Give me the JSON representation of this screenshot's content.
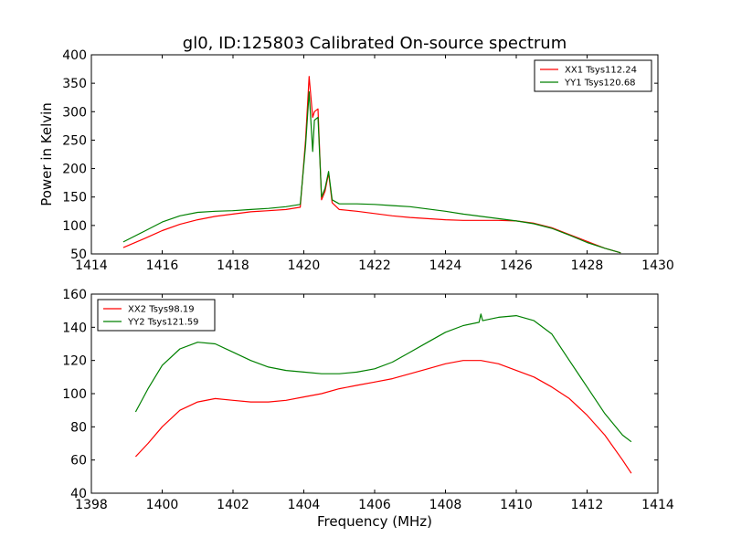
{
  "chart_data": [
    {
      "type": "line",
      "title": "gl0, ID:125803 Calibrated On-source spectrum",
      "xlabel": "",
      "ylabel": "Power in Kelvin",
      "xlim": [
        1414,
        1430
      ],
      "ylim": [
        50,
        400
      ],
      "xticks": [
        "1414",
        "1416",
        "1418",
        "1420",
        "1422",
        "1424",
        "1426",
        "1428",
        "1430"
      ],
      "yticks": [
        "50",
        "100",
        "150",
        "200",
        "250",
        "300",
        "350",
        "400"
      ],
      "legend": "top-right",
      "grid": false,
      "series": [
        {
          "name": "XX1 Tsys112.24",
          "color": "#ff0000",
          "x": [
            1414.9,
            1415.5,
            1416.0,
            1416.5,
            1417.0,
            1417.5,
            1418.0,
            1418.5,
            1419.0,
            1419.5,
            1419.9,
            1420.05,
            1420.15,
            1420.25,
            1420.3,
            1420.4,
            1420.5,
            1420.6,
            1420.7,
            1420.8,
            1421.0,
            1421.5,
            1422.0,
            1422.5,
            1423.0,
            1423.5,
            1424.0,
            1424.5,
            1425.0,
            1425.5,
            1426.0,
            1426.5,
            1427.0,
            1427.5,
            1428.0,
            1428.5,
            1428.95
          ],
          "values": [
            61,
            77,
            91,
            102,
            110,
            116,
            120,
            124,
            126,
            128,
            132,
            250,
            362,
            290,
            300,
            305,
            145,
            160,
            192,
            140,
            128,
            125,
            121,
            117,
            114,
            112,
            110,
            109,
            109,
            109,
            108,
            104,
            96,
            84,
            72,
            60,
            52
          ]
        },
        {
          "name": "YY1 Tsys120.68",
          "color": "#008000",
          "x": [
            1414.9,
            1415.5,
            1416.0,
            1416.5,
            1417.0,
            1417.5,
            1418.0,
            1418.5,
            1419.0,
            1419.5,
            1419.9,
            1420.05,
            1420.15,
            1420.25,
            1420.3,
            1420.4,
            1420.5,
            1420.6,
            1420.7,
            1420.8,
            1421.0,
            1421.5,
            1422.0,
            1422.5,
            1423.0,
            1423.5,
            1424.0,
            1424.5,
            1425.0,
            1425.5,
            1426.0,
            1426.5,
            1427.0,
            1427.5,
            1428.0,
            1428.5,
            1428.95
          ],
          "values": [
            71,
            90,
            106,
            117,
            123,
            125,
            126,
            128,
            130,
            133,
            137,
            240,
            335,
            230,
            285,
            290,
            150,
            165,
            195,
            145,
            138,
            138,
            137,
            135,
            133,
            129,
            125,
            120,
            116,
            112,
            108,
            103,
            95,
            83,
            70,
            60,
            52
          ]
        }
      ]
    },
    {
      "type": "line",
      "title": "",
      "xlabel": "Frequency (MHz)",
      "ylabel": "",
      "xlim": [
        1398,
        1414
      ],
      "ylim": [
        40,
        160
      ],
      "xticks": [
        "1398",
        "1400",
        "1402",
        "1404",
        "1406",
        "1408",
        "1410",
        "1412",
        "1414"
      ],
      "yticks": [
        "40",
        "60",
        "80",
        "100",
        "120",
        "140",
        "160"
      ],
      "legend": "top-left",
      "grid": false,
      "series": [
        {
          "name": "XX2 Tsys98.19",
          "color": "#ff0000",
          "x": [
            1399.25,
            1399.6,
            1400.0,
            1400.5,
            1401.0,
            1401.5,
            1402.0,
            1402.5,
            1403.0,
            1403.5,
            1404.0,
            1404.5,
            1405.0,
            1405.5,
            1406.0,
            1406.5,
            1407.0,
            1407.5,
            1408.0,
            1408.5,
            1409.0,
            1409.5,
            1410.0,
            1410.5,
            1411.0,
            1411.5,
            1412.0,
            1412.5,
            1413.0,
            1413.25
          ],
          "values": [
            62,
            70,
            80,
            90,
            95,
            97,
            96,
            95,
            95,
            96,
            98,
            100,
            103,
            105,
            107,
            109,
            112,
            115,
            118,
            120,
            120,
            118,
            114,
            110,
            104,
            97,
            87,
            75,
            60,
            52
          ]
        },
        {
          "name": "YY2 Tsys121.59",
          "color": "#008000",
          "x": [
            1399.25,
            1399.6,
            1400.0,
            1400.5,
            1401.0,
            1401.5,
            1402.0,
            1402.5,
            1403.0,
            1403.5,
            1404.0,
            1404.5,
            1405.0,
            1405.5,
            1406.0,
            1406.5,
            1407.0,
            1407.5,
            1408.0,
            1408.5,
            1408.95,
            1409.0,
            1409.05,
            1409.5,
            1410.0,
            1410.5,
            1411.0,
            1411.5,
            1412.0,
            1412.5,
            1413.0,
            1413.25
          ],
          "values": [
            89,
            103,
            117,
            127,
            131,
            130,
            125,
            120,
            116,
            114,
            113,
            112,
            112,
            113,
            115,
            119,
            125,
            131,
            137,
            141,
            143,
            148,
            144,
            146,
            147,
            144,
            136,
            120,
            104,
            88,
            75,
            71
          ]
        }
      ]
    }
  ]
}
